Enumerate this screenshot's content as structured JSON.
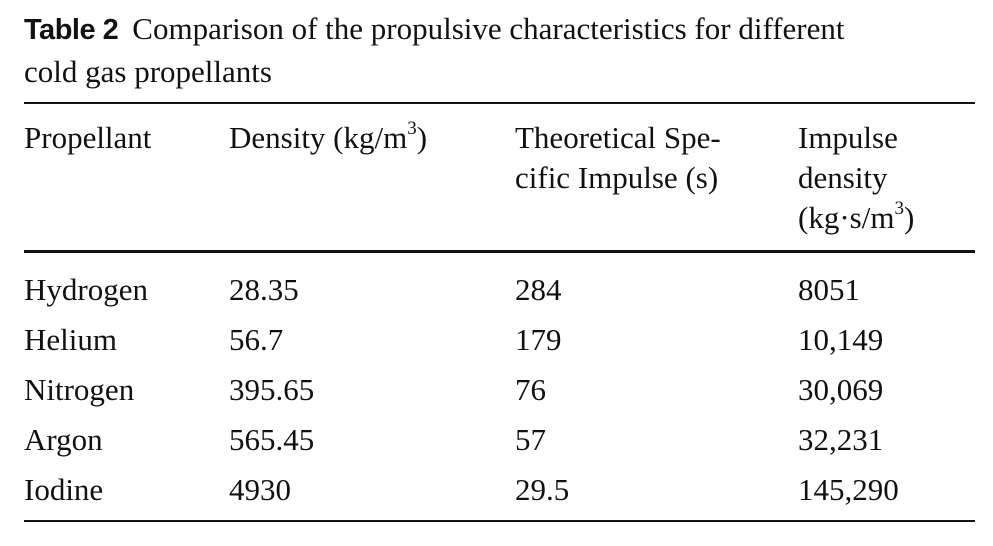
{
  "caption": {
    "label": "Table 2",
    "text_line1": "Comparison of the propulsive characteristics for different",
    "text_line2": "cold gas propellants"
  },
  "table": {
    "headers": {
      "propellant": "Propellant",
      "density": "Density (kg/m",
      "density_sup": "3",
      "density_close": ")",
      "isp_line1": "Theoretical Spe-",
      "isp_line2": "cific Impulse (s)",
      "impulse_line1": "Impulse",
      "impulse_line2": "density",
      "impulse_line3": "(kg·s/m",
      "impulse_sup": "3",
      "impulse_close": ")"
    },
    "rows": [
      {
        "propellant": "Hydrogen",
        "density": "28.35",
        "isp": "284",
        "impulse_density": "8051"
      },
      {
        "propellant": "Helium",
        "density": "56.7",
        "isp": "179",
        "impulse_density": "10,149"
      },
      {
        "propellant": "Nitrogen",
        "density": "395.65",
        "isp": "76",
        "impulse_density": "30,069"
      },
      {
        "propellant": "Argon",
        "density": "565.45",
        "isp": "57",
        "impulse_density": "32,231"
      },
      {
        "propellant": "Iodine",
        "density": "4930",
        "isp": "29.5",
        "impulse_density": "145,290"
      }
    ]
  }
}
